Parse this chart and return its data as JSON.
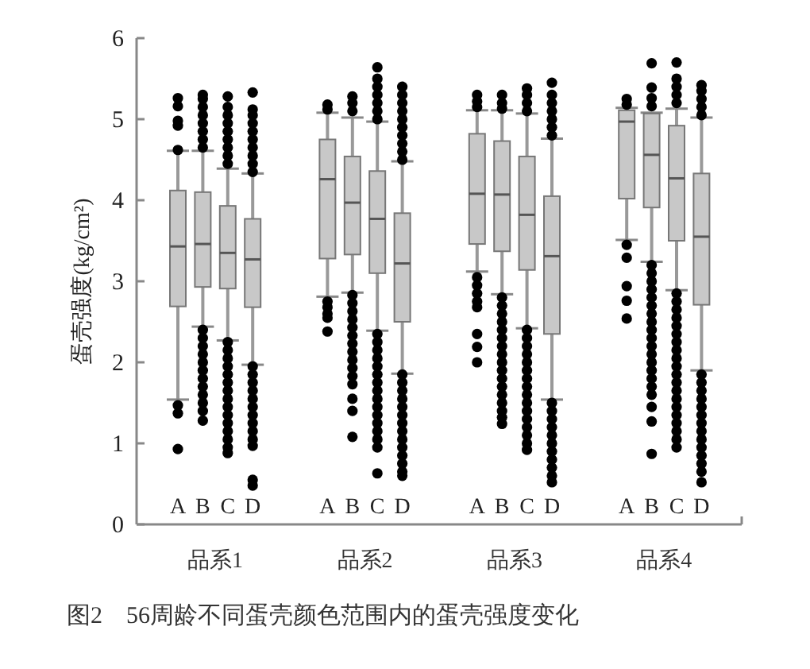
{
  "chart_data": {
    "type": "box",
    "ylabel": "蛋壳强度(kg/cm²)",
    "categories": [
      "A",
      "B",
      "C",
      "D",
      "A",
      "B",
      "C",
      "D",
      "A",
      "B",
      "C",
      "D",
      "A",
      "B",
      "C",
      "D"
    ],
    "ylim": [
      0,
      6
    ],
    "yticks": [
      0,
      1,
      2,
      3,
      4,
      5,
      6
    ],
    "color": "#c8c8c8",
    "grid": false,
    "annotations": [
      "品系1",
      "品系2",
      "品系3",
      "品系4",
      "图2　56周龄不同蛋壳颜色范围内的蛋壳强度变化"
    ],
    "boxes": [
      {
        "low": 1.54,
        "q1": 2.69,
        "median": 3.43,
        "q3": 4.12,
        "high": 4.61,
        "outliers": [
          5.26,
          5.16,
          4.98,
          4.92,
          4.62,
          1.47,
          1.37,
          0.93
        ]
      },
      {
        "low": 2.44,
        "q1": 2.93,
        "median": 3.46,
        "q3": 4.1,
        "high": 4.61,
        "outliers": [
          4.65,
          4.75,
          4.85,
          4.95,
          5.05,
          5.15,
          5.25,
          5.3,
          2.4,
          2.3,
          2.2,
          2.1,
          2.0,
          1.9,
          1.8,
          1.7,
          1.6,
          1.5,
          1.4,
          1.28
        ]
      },
      {
        "low": 2.27,
        "q1": 2.91,
        "median": 3.35,
        "q3": 3.93,
        "high": 4.39,
        "outliers": [
          4.45,
          4.55,
          4.65,
          4.75,
          4.85,
          4.95,
          5.05,
          5.15,
          5.28,
          2.25,
          2.15,
          2.05,
          1.95,
          1.85,
          1.75,
          1.65,
          1.55,
          1.45,
          1.35,
          1.25,
          1.15,
          1.05,
          0.95,
          0.88
        ]
      },
      {
        "low": 1.97,
        "q1": 2.68,
        "median": 3.27,
        "q3": 3.77,
        "high": 4.33,
        "outliers": [
          4.35,
          4.45,
          4.55,
          4.65,
          4.75,
          4.85,
          4.95,
          5.05,
          5.12,
          5.33,
          1.95,
          1.85,
          1.75,
          1.65,
          1.55,
          1.45,
          1.35,
          1.25,
          1.15,
          1.05,
          0.97,
          0.55,
          0.48
        ]
      },
      {
        "low": 2.81,
        "q1": 3.28,
        "median": 4.26,
        "q3": 4.75,
        "high": 5.08,
        "outliers": [
          5.18,
          5.12,
          2.75,
          2.68,
          2.6,
          2.55,
          2.38
        ]
      },
      {
        "low": 2.86,
        "q1": 3.33,
        "median": 3.97,
        "q3": 4.54,
        "high": 5.02,
        "outliers": [
          5.1,
          5.2,
          5.28,
          2.83,
          2.73,
          2.63,
          2.53,
          2.43,
          2.33,
          2.23,
          2.13,
          2.03,
          1.93,
          1.83,
          1.73,
          1.55,
          1.4,
          1.08
        ]
      },
      {
        "low": 2.39,
        "q1": 3.1,
        "median": 3.77,
        "q3": 4.36,
        "high": 4.97,
        "outliers": [
          5.0,
          5.1,
          5.2,
          5.3,
          5.4,
          5.5,
          5.64,
          2.35,
          2.25,
          2.15,
          2.05,
          1.95,
          1.85,
          1.75,
          1.65,
          1.55,
          1.45,
          1.35,
          1.25,
          1.15,
          1.05,
          0.95,
          0.63
        ]
      },
      {
        "low": 1.86,
        "q1": 2.5,
        "median": 3.22,
        "q3": 3.84,
        "high": 4.48,
        "outliers": [
          4.5,
          4.6,
          4.7,
          4.8,
          4.9,
          5.0,
          5.1,
          5.2,
          5.3,
          5.4,
          1.85,
          1.75,
          1.65,
          1.55,
          1.45,
          1.35,
          1.25,
          1.15,
          1.05,
          0.95,
          0.85,
          0.75,
          0.65,
          0.6
        ]
      },
      {
        "low": 3.12,
        "q1": 3.46,
        "median": 4.08,
        "q3": 4.82,
        "high": 5.11,
        "outliers": [
          5.15,
          5.22,
          5.3,
          3.05,
          2.95,
          2.85,
          2.75,
          2.68,
          2.35,
          2.19,
          2.0
        ]
      },
      {
        "low": 2.84,
        "q1": 3.37,
        "median": 4.07,
        "q3": 4.73,
        "high": 5.11,
        "outliers": [
          5.13,
          5.2,
          5.3,
          2.8,
          2.7,
          2.6,
          2.5,
          2.4,
          2.3,
          2.2,
          2.1,
          2.0,
          1.9,
          1.8,
          1.7,
          1.6,
          1.5,
          1.4,
          1.32,
          1.24
        ]
      },
      {
        "low": 2.42,
        "q1": 3.14,
        "median": 3.82,
        "q3": 4.54,
        "high": 5.07,
        "outliers": [
          5.1,
          5.2,
          5.3,
          5.38,
          2.4,
          2.3,
          2.2,
          2.1,
          2.0,
          1.9,
          1.8,
          1.7,
          1.6,
          1.5,
          1.4,
          1.3,
          1.2,
          1.1,
          1.0,
          0.92
        ]
      },
      {
        "low": 1.54,
        "q1": 2.35,
        "median": 3.31,
        "q3": 4.05,
        "high": 4.76,
        "outliers": [
          4.8,
          4.9,
          5.0,
          5.1,
          5.2,
          5.3,
          5.45,
          1.5,
          1.4,
          1.3,
          1.2,
          1.1,
          1.0,
          0.9,
          0.8,
          0.7,
          0.6,
          0.52
        ]
      },
      {
        "low": 3.51,
        "q1": 4.02,
        "median": 4.97,
        "q3": 5.11,
        "high": 5.14,
        "outliers": [
          5.18,
          5.25,
          3.45,
          3.29,
          2.94,
          2.76,
          2.54
        ]
      },
      {
        "low": 3.24,
        "q1": 3.91,
        "median": 4.56,
        "q3": 5.07,
        "high": 5.08,
        "outliers": [
          5.16,
          5.26,
          5.39,
          5.69,
          3.2,
          3.1,
          3.0,
          2.9,
          2.8,
          2.7,
          2.6,
          2.5,
          2.4,
          2.3,
          2.2,
          2.1,
          2.0,
          1.9,
          1.8,
          1.7,
          1.6,
          1.45,
          1.27,
          0.87
        ]
      },
      {
        "low": 2.89,
        "q1": 3.5,
        "median": 4.27,
        "q3": 4.92,
        "high": 5.13,
        "outliers": [
          5.2,
          5.3,
          5.4,
          5.5,
          5.7,
          2.85,
          2.75,
          2.65,
          2.55,
          2.45,
          2.35,
          2.25,
          2.15,
          2.05,
          1.95,
          1.85,
          1.75,
          1.65,
          1.55,
          1.45,
          1.35,
          1.25,
          1.15,
          1.05,
          0.95
        ]
      },
      {
        "low": 1.9,
        "q1": 2.71,
        "median": 3.55,
        "q3": 4.33,
        "high": 5.02,
        "outliers": [
          5.05,
          5.15,
          5.25,
          5.35,
          5.42,
          1.85,
          1.75,
          1.65,
          1.55,
          1.45,
          1.35,
          1.25,
          1.15,
          1.05,
          0.95,
          0.85,
          0.75,
          0.65,
          0.52
        ]
      }
    ]
  }
}
